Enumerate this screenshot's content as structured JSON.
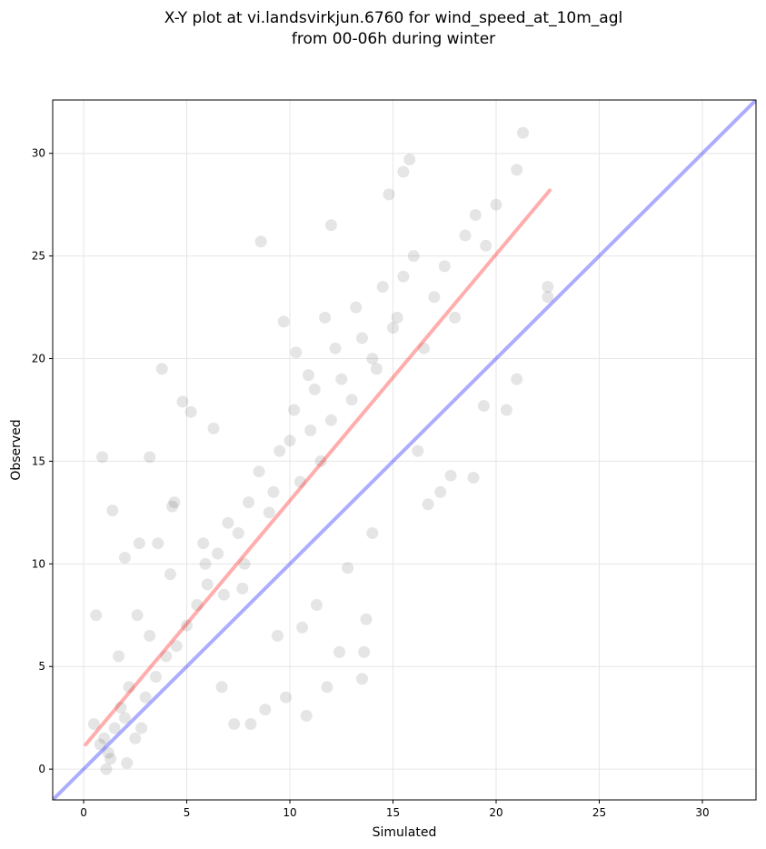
{
  "chart_data": {
    "type": "scatter",
    "title": "X-Y plot at vi.landsvirkjun.6760 for wind_speed_at_10m_agl",
    "subtitle": "from 00-06h during winter",
    "xlabel": "Simulated",
    "ylabel": "Observed",
    "xlim": [
      -1.5,
      32.6
    ],
    "ylim": [
      -1.5,
      32.6
    ],
    "xticks": [
      0,
      5,
      10,
      15,
      20,
      25,
      30
    ],
    "yticks": [
      0,
      5,
      10,
      15,
      20,
      25,
      30
    ],
    "grid": true,
    "colors": {
      "points": "#000000",
      "fit_line": "#ff0000",
      "identity_line": "#0000ff",
      "grid": "#e6e6e6"
    },
    "series": [
      {
        "kind": "points",
        "x": [
          1.0,
          1.5,
          1.2,
          2.0,
          0.8,
          1.8,
          2.5,
          1.3,
          3.0,
          2.2,
          0.5,
          1.7,
          2.8,
          3.5,
          4.0,
          3.2,
          2.6,
          4.5,
          5.0,
          4.2,
          5.5,
          6.0,
          5.8,
          6.5,
          7.0,
          6.8,
          7.5,
          8.0,
          7.8,
          8.5,
          9.0,
          9.5,
          9.2,
          10.0,
          10.5,
          10.2,
          11.0,
          11.5,
          11.2,
          12.0,
          12.5,
          12.2,
          13.0,
          13.5,
          13.2,
          14.0,
          14.5,
          14.2,
          15.0,
          15.5,
          15.2,
          16.0,
          16.5,
          17.0,
          17.5,
          18.0,
          18.5,
          19.0,
          19.5,
          20.0,
          21.0,
          21.3,
          22.5,
          22.5,
          20.5,
          21.0,
          15.8,
          15.5,
          14.8,
          12.0,
          8.6,
          3.8,
          0.9,
          1.4,
          2.0,
          4.8,
          5.2,
          6.3,
          7.7,
          9.8,
          10.8,
          11.8,
          13.5,
          14.0,
          12.8,
          13.7,
          17.8,
          18.9,
          19.4,
          16.7,
          17.3,
          16.2,
          3.2,
          2.7,
          4.3,
          6.7,
          8.8,
          9.4,
          10.6,
          11.3,
          12.4,
          13.6,
          5.9,
          7.3,
          8.1,
          2.1,
          1.1,
          0.6,
          3.6,
          4.4,
          10.9,
          9.7,
          10.3,
          11.7
        ],
        "y": [
          1.5,
          2.0,
          0.8,
          2.5,
          1.2,
          3.0,
          1.5,
          0.5,
          3.5,
          4.0,
          2.2,
          5.5,
          2.0,
          4.5,
          5.5,
          6.5,
          7.5,
          6.0,
          7.0,
          9.5,
          8.0,
          9.0,
          11.0,
          10.5,
          12.0,
          8.5,
          11.5,
          13.0,
          10.0,
          14.5,
          12.5,
          15.5,
          13.5,
          16.0,
          14.0,
          17.5,
          16.5,
          15.0,
          18.5,
          17.0,
          19.0,
          20.5,
          18.0,
          21.0,
          22.5,
          20.0,
          23.5,
          19.5,
          21.5,
          24.0,
          22.0,
          25.0,
          20.5,
          23.0,
          24.5,
          22.0,
          26.0,
          27.0,
          25.5,
          27.5,
          29.2,
          31.0,
          23.0,
          23.5,
          17.5,
          19.0,
          29.7,
          29.1,
          28.0,
          26.5,
          25.7,
          19.5,
          15.2,
          12.6,
          10.3,
          17.9,
          17.4,
          16.6,
          8.8,
          3.5,
          2.6,
          4.0,
          4.4,
          11.5,
          9.8,
          7.3,
          14.3,
          14.2,
          17.7,
          12.9,
          13.5,
          15.5,
          15.2,
          11.0,
          12.8,
          4.0,
          2.9,
          6.5,
          6.9,
          8.0,
          5.7,
          5.7,
          10.0,
          2.2,
          2.2,
          0.3,
          0.0,
          7.5,
          11.0,
          13.0,
          19.2,
          21.8,
          20.3,
          22.0
        ]
      },
      {
        "kind": "regression-line",
        "x": [
          0.1,
          22.6
        ],
        "y": [
          1.2,
          28.2
        ]
      },
      {
        "kind": "identity-line",
        "x": [
          -1.5,
          32.6
        ],
        "y": [
          -1.5,
          32.6
        ]
      }
    ]
  }
}
